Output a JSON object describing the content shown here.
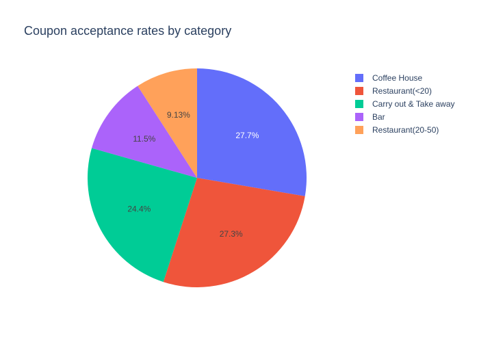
{
  "chart_data": {
    "type": "pie",
    "title": "Coupon acceptance rates by category",
    "categories": [
      "Coffee House",
      "Restaurant(<20)",
      "Carry out & Take away",
      "Bar",
      "Restaurant(20-50)"
    ],
    "values": [
      27.7,
      27.3,
      24.4,
      11.5,
      9.13
    ],
    "value_labels": [
      "27.7%",
      "27.3%",
      "24.4%",
      "11.5%",
      "9.13%"
    ],
    "legend_order": [
      "Coffee House",
      "Restaurant(<20)",
      "Carry out & Take away",
      "Bar",
      "Restaurant(20-50)"
    ],
    "legend_placement": "top-right",
    "direction": "clockwise",
    "sort": "descending",
    "colors": {
      "Coffee House": "#636efa",
      "Restaurant(<20)": "#ef553b",
      "Carry out & Take away": "#00cc96",
      "Bar": "#ab63fa",
      "Restaurant(20-50)": "#ffa15a"
    },
    "label_colors": {
      "Coffee House": "#ffffff",
      "Restaurant(<20)": "#444444",
      "Carry out & Take away": "#444444",
      "Bar": "#444444",
      "Restaurant(20-50)": "#444444"
    }
  }
}
